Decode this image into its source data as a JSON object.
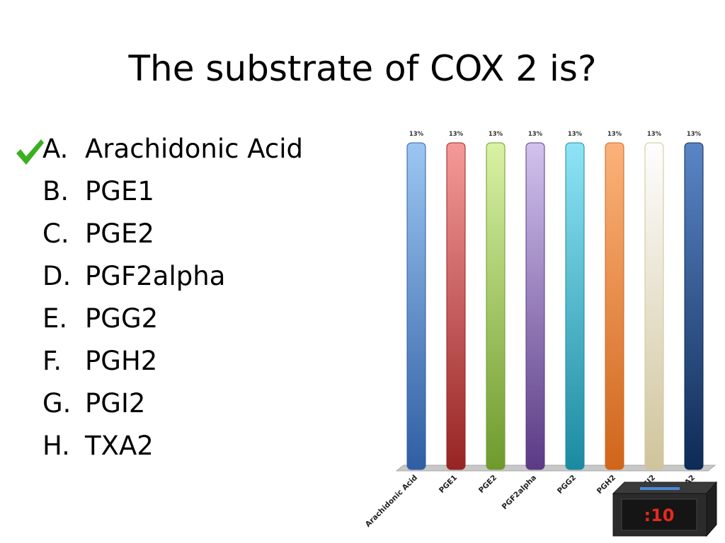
{
  "question": "The substrate of COX 2 is?",
  "answers": [
    {
      "letter": "A.",
      "text": "Arachidonic Acid",
      "correct": true
    },
    {
      "letter": "B.",
      "text": "PGE1",
      "correct": false
    },
    {
      "letter": "C.",
      "text": "PGE2",
      "correct": false
    },
    {
      "letter": "D.",
      "text": "PGF2alpha",
      "correct": false
    },
    {
      "letter": "E.",
      "text": "PGG2",
      "correct": false
    },
    {
      "letter": "F.",
      "text": "PGH2",
      "correct": false
    },
    {
      "letter": "G.",
      "text": "PGI2",
      "correct": false
    },
    {
      "letter": "H.",
      "text": "TXA2",
      "correct": false
    }
  ],
  "check_color": "#3ab021",
  "timer": {
    "label": ":10",
    "color": "#e8281e"
  },
  "chart_data": {
    "type": "bar",
    "categories": [
      "Arachidonic Acid",
      "PGE1",
      "PGE2",
      "PGF2alpha",
      "PGG2",
      "PGH2",
      "PGI2",
      "TXA2"
    ],
    "values": [
      13,
      13,
      13,
      13,
      13,
      13,
      13,
      13
    ],
    "data_labels": [
      "13%",
      "13%",
      "13%",
      "13%",
      "13%",
      "13%",
      "13%",
      "13%"
    ],
    "ylim": [
      0,
      13
    ],
    "grid": false,
    "legend": "none",
    "colors": [
      [
        "#9cc6f2",
        "#2f5ea3"
      ],
      [
        "#f59a98",
        "#962423"
      ],
      [
        "#d9f2a4",
        "#6e9a2c"
      ],
      [
        "#d2c2ee",
        "#5a3a84"
      ],
      [
        "#8ee4f6",
        "#1b8aa0"
      ],
      [
        "#fbb27a",
        "#d0651a"
      ],
      [
        "#fefefe",
        "#cfc49a"
      ],
      [
        "#5a86c6",
        "#0e2a55"
      ]
    ]
  }
}
